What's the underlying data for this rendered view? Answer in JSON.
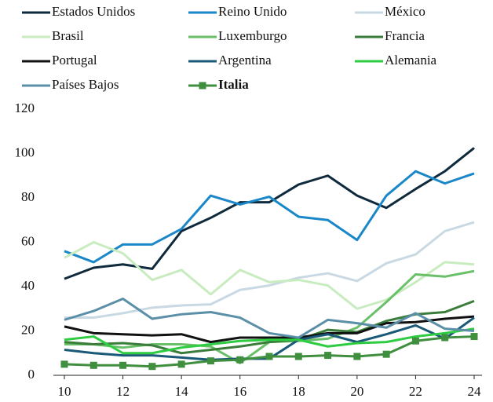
{
  "chart_data": {
    "type": "line",
    "x": [
      10,
      11,
      12,
      13,
      14,
      15,
      16,
      17,
      18,
      19,
      20,
      21,
      22,
      23,
      24
    ],
    "xlim": [
      10,
      24
    ],
    "xticks": [
      10,
      12,
      14,
      16,
      18,
      20,
      22,
      24
    ],
    "ylim": [
      0,
      120
    ],
    "yticks": [
      0,
      20,
      40,
      60,
      80,
      100,
      120
    ],
    "series": [
      {
        "name": "Estados Unidos",
        "color": "#0e2a3c",
        "values": [
          43.5,
          48.5,
          50,
          48,
          65,
          71,
          78,
          78,
          86,
          90,
          81,
          75.5,
          84,
          92,
          102.5
        ]
      },
      {
        "name": "Reino Unido",
        "color": "#1a87c9",
        "values": [
          56,
          51,
          59,
          59,
          66,
          81,
          77,
          80.5,
          71.5,
          70,
          61,
          81,
          92,
          86.5,
          91
        ]
      },
      {
        "name": "México",
        "color": "#c9d9e3",
        "values": [
          26,
          26,
          28,
          30.5,
          31.5,
          32,
          38.5,
          40.5,
          44,
          46,
          42.5,
          50.5,
          54.5,
          65,
          69
        ]
      },
      {
        "name": "Brasil",
        "color": "#c8ecc0",
        "values": [
          53,
          60,
          55,
          43,
          47.5,
          36.5,
          47.5,
          42,
          43,
          40.5,
          30,
          34,
          42,
          51,
          50
        ]
      },
      {
        "name": "Luxemburgo",
        "color": "#6abf69",
        "values": [
          14,
          14,
          12.5,
          14,
          14,
          13,
          5.5,
          15,
          15.5,
          16.5,
          21.5,
          33,
          45.5,
          44.5,
          47
        ]
      },
      {
        "name": "Francia",
        "color": "#3a7d3a",
        "values": [
          15,
          14,
          14.5,
          13.5,
          10,
          11.5,
          13,
          15,
          16,
          20.5,
          19.5,
          24.5,
          27.5,
          28.5,
          33.5
        ]
      },
      {
        "name": "Portugal",
        "color": "#111111",
        "values": [
          22,
          19,
          18.5,
          18,
          18.5,
          15,
          17,
          17,
          17,
          19,
          19,
          23.5,
          24,
          25.5,
          26.5
        ]
      },
      {
        "name": "Argentina",
        "color": "#1a5a78",
        "values": [
          11.5,
          10,
          9,
          9,
          8,
          7,
          7.5,
          7.5,
          16,
          18.5,
          15,
          18.5,
          22.5,
          16.5,
          26
        ]
      },
      {
        "name": "Alemania",
        "color": "#2ecc40",
        "values": [
          16,
          17.5,
          10,
          10,
          12.5,
          14,
          15.5,
          16,
          16,
          13,
          14.5,
          15,
          17.5,
          19,
          21
        ]
      },
      {
        "name": "Países Bajos",
        "color": "#5b8fa8",
        "values": [
          25,
          29,
          34.5,
          25.5,
          27.5,
          28.5,
          26,
          19,
          17,
          25,
          23.5,
          21.5,
          28,
          21,
          20
        ]
      },
      {
        "name": "Italia",
        "color": "#3f8f3f",
        "marker": "square",
        "bold": true,
        "values": [
          5,
          4.5,
          4.5,
          4,
          5,
          6.5,
          7,
          8.5,
          8.5,
          9,
          8.5,
          9.5,
          15.5,
          17,
          17.5
        ]
      }
    ]
  }
}
